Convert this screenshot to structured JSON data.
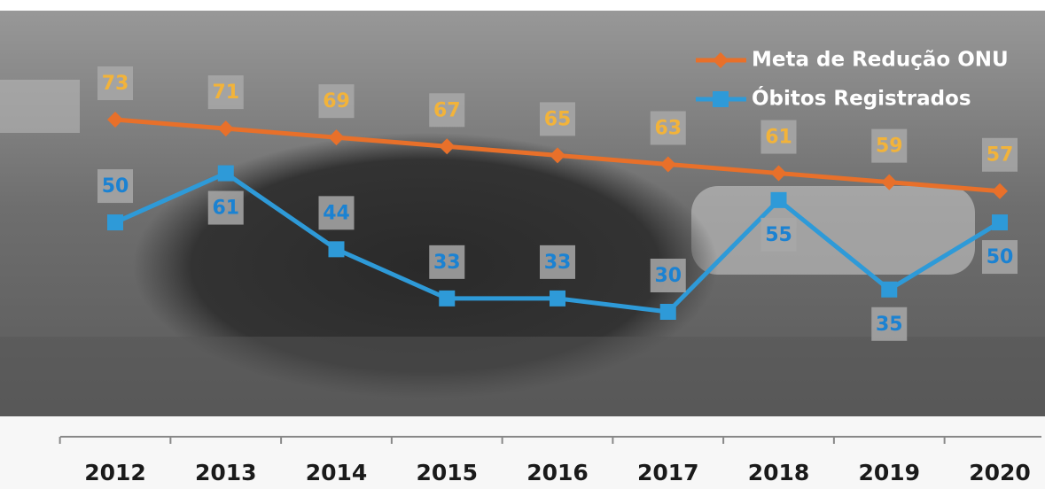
{
  "chart_data": {
    "type": "line",
    "categories": [
      "2012",
      "2013",
      "2014",
      "2015",
      "2016",
      "2017",
      "2018",
      "2019",
      "2020"
    ],
    "series": [
      {
        "name": "Meta de Redução ONU",
        "color": "#e8702a",
        "marker": "diamond",
        "values": [
          73,
          71,
          69,
          67,
          65,
          63,
          61,
          59,
          57
        ]
      },
      {
        "name": "Óbitos Registrados",
        "color": "#2e9ad8",
        "marker": "square",
        "values": [
          50,
          61,
          44,
          33,
          33,
          30,
          55,
          35,
          50
        ]
      }
    ],
    "legend": "top-right"
  }
}
